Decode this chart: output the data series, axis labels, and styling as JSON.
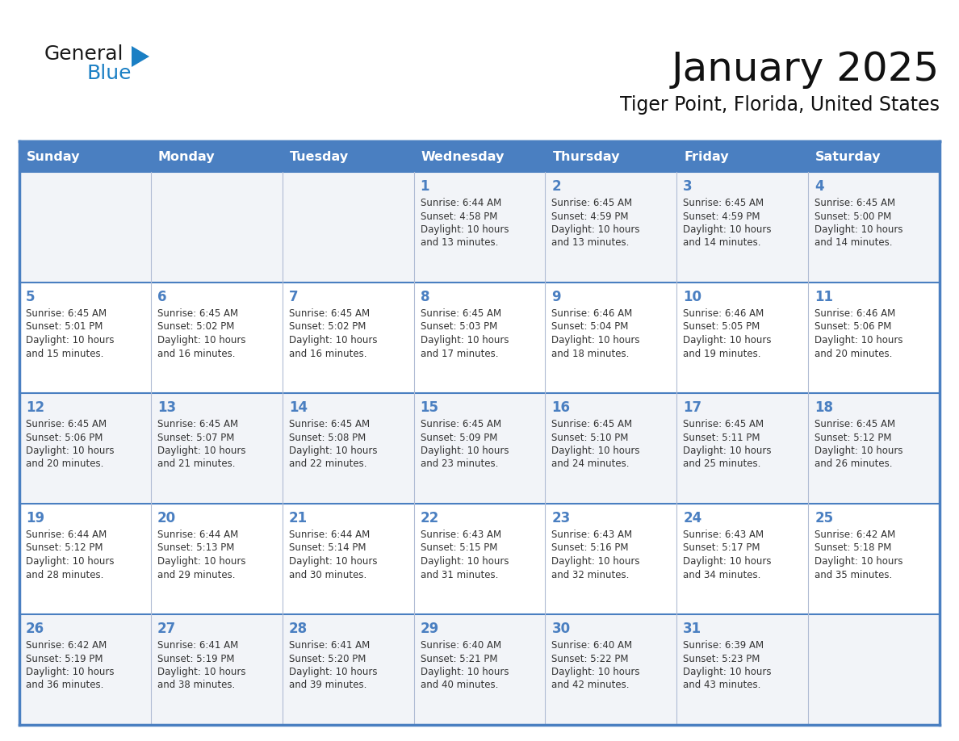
{
  "title": "January 2025",
  "subtitle": "Tiger Point, Florida, United States",
  "days_of_week": [
    "Sunday",
    "Monday",
    "Tuesday",
    "Wednesday",
    "Thursday",
    "Friday",
    "Saturday"
  ],
  "header_bg": "#4a7fc1",
  "header_text_color": "#ffffff",
  "cell_bg_even": "#f2f4f8",
  "cell_bg_odd": "#ffffff",
  "text_color": "#333333",
  "day_number_color": "#4a7fc1",
  "border_color": "#4a7fc1",
  "sep_color": "#b0bcd4",
  "logo_general_color": "#1a1a1a",
  "logo_blue_color": "#1a7fc4",
  "triangle_color": "#1a7fc4",
  "calendar_data": [
    [
      {
        "day": null,
        "sunrise": null,
        "sunset": null,
        "daylight": null
      },
      {
        "day": null,
        "sunrise": null,
        "sunset": null,
        "daylight": null
      },
      {
        "day": null,
        "sunrise": null,
        "sunset": null,
        "daylight": null
      },
      {
        "day": 1,
        "sunrise": "6:44 AM",
        "sunset": "4:58 PM",
        "daylight": "10 hours and 13 minutes."
      },
      {
        "day": 2,
        "sunrise": "6:45 AM",
        "sunset": "4:59 PM",
        "daylight": "10 hours and 13 minutes."
      },
      {
        "day": 3,
        "sunrise": "6:45 AM",
        "sunset": "4:59 PM",
        "daylight": "10 hours and 14 minutes."
      },
      {
        "day": 4,
        "sunrise": "6:45 AM",
        "sunset": "5:00 PM",
        "daylight": "10 hours and 14 minutes."
      }
    ],
    [
      {
        "day": 5,
        "sunrise": "6:45 AM",
        "sunset": "5:01 PM",
        "daylight": "10 hours and 15 minutes."
      },
      {
        "day": 6,
        "sunrise": "6:45 AM",
        "sunset": "5:02 PM",
        "daylight": "10 hours and 16 minutes."
      },
      {
        "day": 7,
        "sunrise": "6:45 AM",
        "sunset": "5:02 PM",
        "daylight": "10 hours and 16 minutes."
      },
      {
        "day": 8,
        "sunrise": "6:45 AM",
        "sunset": "5:03 PM",
        "daylight": "10 hours and 17 minutes."
      },
      {
        "day": 9,
        "sunrise": "6:46 AM",
        "sunset": "5:04 PM",
        "daylight": "10 hours and 18 minutes."
      },
      {
        "day": 10,
        "sunrise": "6:46 AM",
        "sunset": "5:05 PM",
        "daylight": "10 hours and 19 minutes."
      },
      {
        "day": 11,
        "sunrise": "6:46 AM",
        "sunset": "5:06 PM",
        "daylight": "10 hours and 20 minutes."
      }
    ],
    [
      {
        "day": 12,
        "sunrise": "6:45 AM",
        "sunset": "5:06 PM",
        "daylight": "10 hours and 20 minutes."
      },
      {
        "day": 13,
        "sunrise": "6:45 AM",
        "sunset": "5:07 PM",
        "daylight": "10 hours and 21 minutes."
      },
      {
        "day": 14,
        "sunrise": "6:45 AM",
        "sunset": "5:08 PM",
        "daylight": "10 hours and 22 minutes."
      },
      {
        "day": 15,
        "sunrise": "6:45 AM",
        "sunset": "5:09 PM",
        "daylight": "10 hours and 23 minutes."
      },
      {
        "day": 16,
        "sunrise": "6:45 AM",
        "sunset": "5:10 PM",
        "daylight": "10 hours and 24 minutes."
      },
      {
        "day": 17,
        "sunrise": "6:45 AM",
        "sunset": "5:11 PM",
        "daylight": "10 hours and 25 minutes."
      },
      {
        "day": 18,
        "sunrise": "6:45 AM",
        "sunset": "5:12 PM",
        "daylight": "10 hours and 26 minutes."
      }
    ],
    [
      {
        "day": 19,
        "sunrise": "6:44 AM",
        "sunset": "5:12 PM",
        "daylight": "10 hours and 28 minutes."
      },
      {
        "day": 20,
        "sunrise": "6:44 AM",
        "sunset": "5:13 PM",
        "daylight": "10 hours and 29 minutes."
      },
      {
        "day": 21,
        "sunrise": "6:44 AM",
        "sunset": "5:14 PM",
        "daylight": "10 hours and 30 minutes."
      },
      {
        "day": 22,
        "sunrise": "6:43 AM",
        "sunset": "5:15 PM",
        "daylight": "10 hours and 31 minutes."
      },
      {
        "day": 23,
        "sunrise": "6:43 AM",
        "sunset": "5:16 PM",
        "daylight": "10 hours and 32 minutes."
      },
      {
        "day": 24,
        "sunrise": "6:43 AM",
        "sunset": "5:17 PM",
        "daylight": "10 hours and 34 minutes."
      },
      {
        "day": 25,
        "sunrise": "6:42 AM",
        "sunset": "5:18 PM",
        "daylight": "10 hours and 35 minutes."
      }
    ],
    [
      {
        "day": 26,
        "sunrise": "6:42 AM",
        "sunset": "5:19 PM",
        "daylight": "10 hours and 36 minutes."
      },
      {
        "day": 27,
        "sunrise": "6:41 AM",
        "sunset": "5:19 PM",
        "daylight": "10 hours and 38 minutes."
      },
      {
        "day": 28,
        "sunrise": "6:41 AM",
        "sunset": "5:20 PM",
        "daylight": "10 hours and 39 minutes."
      },
      {
        "day": 29,
        "sunrise": "6:40 AM",
        "sunset": "5:21 PM",
        "daylight": "10 hours and 40 minutes."
      },
      {
        "day": 30,
        "sunrise": "6:40 AM",
        "sunset": "5:22 PM",
        "daylight": "10 hours and 42 minutes."
      },
      {
        "day": 31,
        "sunrise": "6:39 AM",
        "sunset": "5:23 PM",
        "daylight": "10 hours and 43 minutes."
      },
      {
        "day": null,
        "sunrise": null,
        "sunset": null,
        "daylight": null
      }
    ]
  ]
}
